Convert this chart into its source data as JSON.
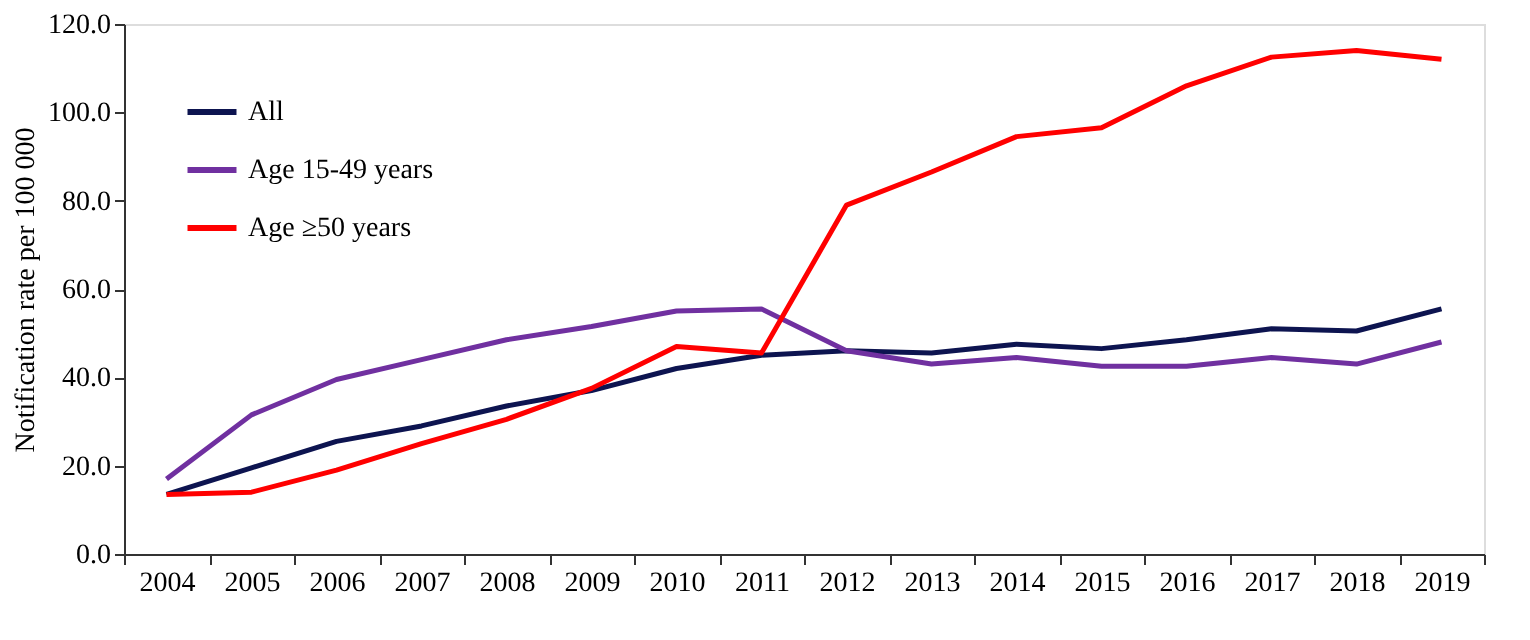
{
  "chart_data": {
    "type": "line",
    "ylabel": "Notification rate per 100 000",
    "categories": [
      "2004",
      "2005",
      "2006",
      "2007",
      "2008",
      "2009",
      "2010",
      "2011",
      "2012",
      "2013",
      "2014",
      "2015",
      "2016",
      "2017",
      "2018",
      "2019"
    ],
    "series": [
      {
        "name": "All",
        "color": "#0d1450",
        "values": [
          13.5,
          19.5,
          25.5,
          29,
          33.5,
          37,
          42,
          45,
          46,
          45.5,
          47.5,
          46.5,
          48.5,
          51,
          50.5,
          55.5
        ]
      },
      {
        "name": "Age 15-49 years",
        "color": "#7030a0",
        "values": [
          17,
          31.5,
          39.5,
          44,
          48.5,
          51.5,
          55,
          55.5,
          46,
          43,
          44.5,
          42.5,
          42.5,
          44.5,
          43,
          48
        ]
      },
      {
        "name": "Age ≥50 years",
        "color": "#ff0000",
        "values": [
          13.5,
          14,
          19,
          25,
          30.5,
          37.5,
          47,
          45.5,
          79,
          86.5,
          94.5,
          96.5,
          106,
          112.5,
          114,
          112
        ]
      }
    ],
    "ylim": [
      0,
      120
    ],
    "yticks": [
      {
        "value": 0,
        "label": "0.0"
      },
      {
        "value": 20,
        "label": "20.0"
      },
      {
        "value": 40,
        "label": "40.0"
      },
      {
        "value": 60,
        "label": "60.0"
      },
      {
        "value": 80,
        "label": "80.0"
      },
      {
        "value": 100,
        "label": "100.0"
      },
      {
        "value": 120,
        "label": "120.0"
      }
    ],
    "grid": false,
    "legend": "top left",
    "marker": "none",
    "line_style": "solid"
  }
}
